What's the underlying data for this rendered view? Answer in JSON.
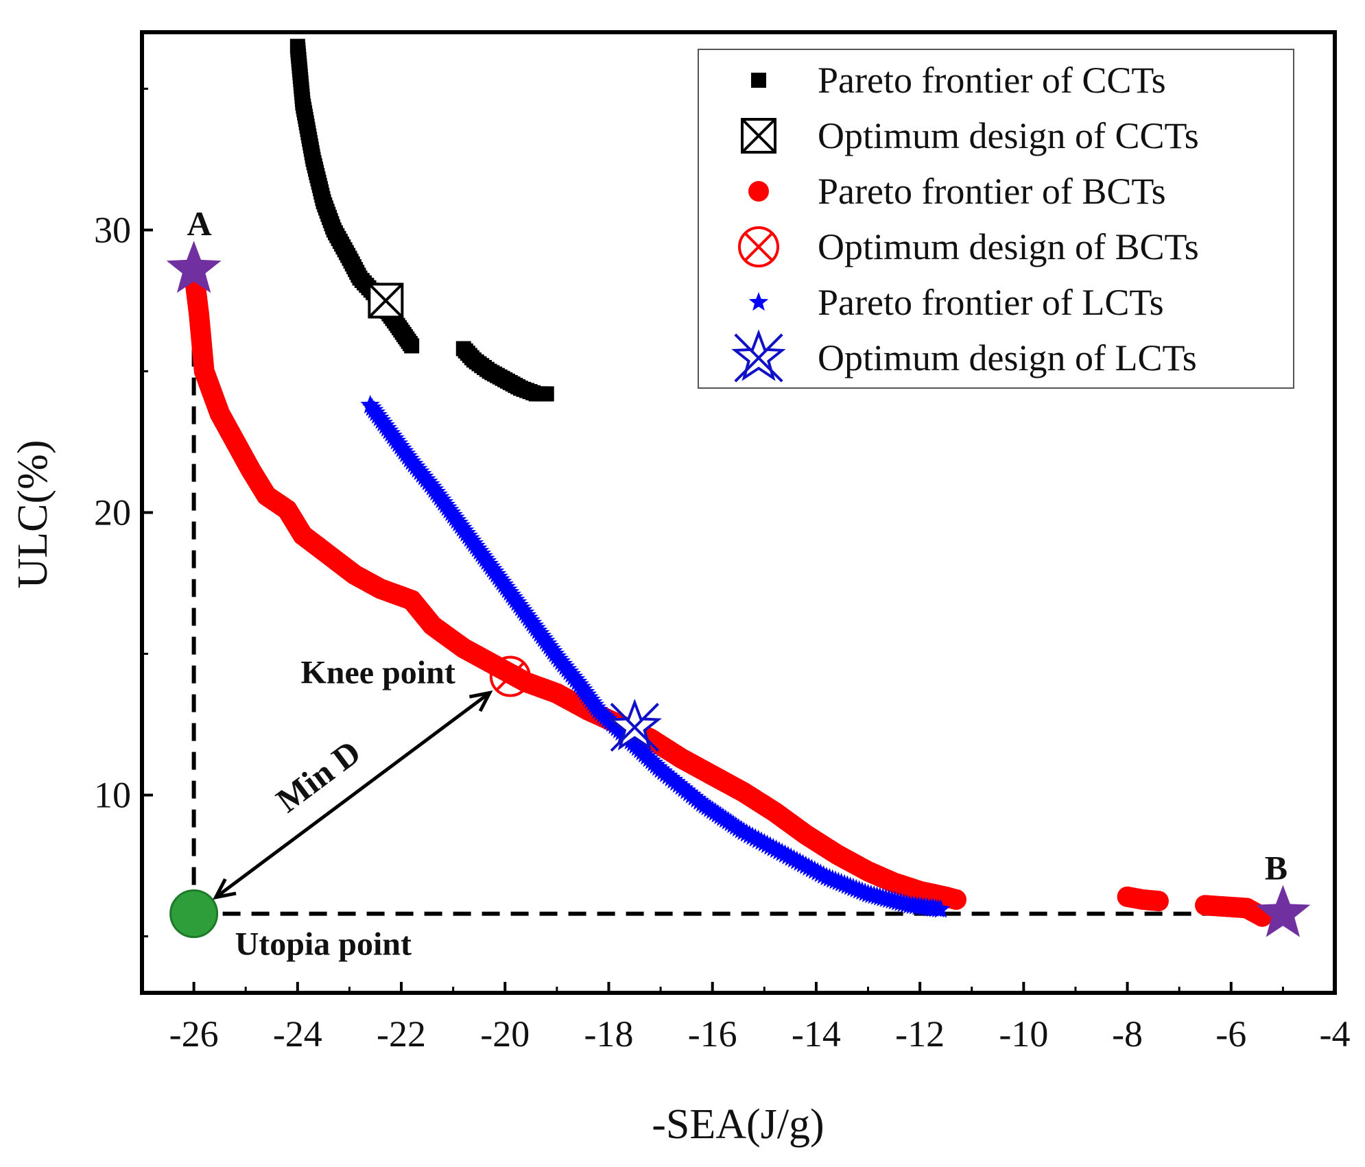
{
  "chart_data": {
    "type": "scatter",
    "xlabel": "-SEA(J/g)",
    "ylabel": "ULC(%)",
    "xlim": [
      -27,
      -4
    ],
    "ylim": [
      3,
      37
    ],
    "x_ticks": [
      -26,
      -24,
      -22,
      -20,
      -18,
      -16,
      -14,
      -12,
      -10,
      -8,
      -6,
      -4
    ],
    "x_tick_labels": [
      "-26",
      "-24",
      "-22",
      "-20",
      "-18",
      "-16",
      "-14",
      "-12",
      "-10",
      "-8",
      "-6",
      "-4"
    ],
    "y_ticks": [
      10,
      20,
      30
    ],
    "y_tick_labels": [
      "10",
      "20",
      "30"
    ],
    "series": [
      {
        "name": "Pareto frontier of CCTs",
        "marker": "square",
        "color": "#000000",
        "points": [
          [
            -24.0,
            36.5
          ],
          [
            -23.9,
            34.5
          ],
          [
            -23.7,
            32.5
          ],
          [
            -23.5,
            31.0
          ],
          [
            -23.3,
            30.0
          ],
          [
            -23.0,
            29.0
          ],
          [
            -22.8,
            28.3
          ],
          [
            -22.5,
            27.7
          ],
          [
            -22.3,
            27.2
          ],
          [
            -22.1,
            26.7
          ],
          [
            -21.95,
            26.3
          ],
          [
            -21.8,
            25.9
          ],
          [
            -20.8,
            25.8
          ],
          [
            -20.6,
            25.4
          ],
          [
            -20.3,
            25.0
          ],
          [
            -20.0,
            24.7
          ],
          [
            -19.7,
            24.4
          ],
          [
            -19.4,
            24.2
          ],
          [
            -19.2,
            24.2
          ]
        ]
      },
      {
        "name": "Pareto frontier of BCTs",
        "marker": "circle",
        "color": "#ff0000",
        "points": [
          [
            -26.0,
            28.5
          ],
          [
            -25.9,
            27.0
          ],
          [
            -25.8,
            25.0
          ],
          [
            -25.5,
            23.5
          ],
          [
            -25.2,
            22.5
          ],
          [
            -24.9,
            21.5
          ],
          [
            -24.6,
            20.6
          ],
          [
            -24.2,
            20.1
          ],
          [
            -23.9,
            19.2
          ],
          [
            -23.4,
            18.5
          ],
          [
            -22.9,
            17.8
          ],
          [
            -22.4,
            17.3
          ],
          [
            -21.8,
            16.9
          ],
          [
            -21.4,
            16.0
          ],
          [
            -20.8,
            15.2
          ],
          [
            -20.2,
            14.6
          ],
          [
            -19.6,
            14.0
          ],
          [
            -19.0,
            13.6
          ],
          [
            -18.4,
            13.0
          ],
          [
            -17.8,
            12.5
          ],
          [
            -17.2,
            12.0
          ],
          [
            -16.6,
            11.3
          ],
          [
            -16.0,
            10.7
          ],
          [
            -15.4,
            10.1
          ],
          [
            -14.8,
            9.4
          ],
          [
            -14.2,
            8.6
          ],
          [
            -13.6,
            7.9
          ],
          [
            -13.0,
            7.3
          ],
          [
            -12.5,
            6.9
          ],
          [
            -12.0,
            6.6
          ],
          [
            -11.5,
            6.4
          ],
          [
            -11.3,
            6.3
          ],
          [
            -8.0,
            6.4
          ],
          [
            -7.7,
            6.3
          ],
          [
            -7.4,
            6.25
          ],
          [
            -6.5,
            6.1
          ],
          [
            -6.1,
            6.05
          ],
          [
            -5.7,
            6.0
          ],
          [
            -5.4,
            5.7
          ]
        ]
      },
      {
        "name": "Pareto frontier of LCTs",
        "marker": "star",
        "color": "#0000ff",
        "points": [
          [
            -22.6,
            23.8
          ],
          [
            -22.2,
            22.8
          ],
          [
            -21.8,
            21.8
          ],
          [
            -21.4,
            20.9
          ],
          [
            -21.0,
            19.9
          ],
          [
            -20.6,
            18.9
          ],
          [
            -20.2,
            17.9
          ],
          [
            -19.8,
            16.9
          ],
          [
            -19.4,
            15.9
          ],
          [
            -19.0,
            14.9
          ],
          [
            -18.6,
            14.0
          ],
          [
            -18.2,
            13.0
          ],
          [
            -17.8,
            12.3
          ],
          [
            -17.4,
            11.6
          ],
          [
            -17.0,
            10.9
          ],
          [
            -16.6,
            10.3
          ],
          [
            -16.2,
            9.7
          ],
          [
            -15.8,
            9.2
          ],
          [
            -15.4,
            8.7
          ],
          [
            -15.0,
            8.3
          ],
          [
            -14.6,
            7.9
          ],
          [
            -14.2,
            7.5
          ],
          [
            -13.8,
            7.1
          ],
          [
            -13.4,
            6.8
          ],
          [
            -13.0,
            6.5
          ],
          [
            -12.6,
            6.3
          ],
          [
            -12.2,
            6.1
          ],
          [
            -11.8,
            6.0
          ],
          [
            -11.6,
            5.95
          ]
        ]
      }
    ],
    "optimum_designs": [
      {
        "name": "Optimum design of CCTs",
        "marker": "square-x",
        "color": "#000000",
        "x": -22.3,
        "y": 27.5
      },
      {
        "name": "Optimum design of BCTs",
        "marker": "circle-x",
        "color": "#ff0000",
        "x": -19.9,
        "y": 14.2
      },
      {
        "name": "Optimum design of LCTs",
        "marker": "star-outline",
        "color": "#1010c8",
        "x": -17.5,
        "y": 12.4
      }
    ],
    "special_points": [
      {
        "label": "A",
        "x": -26.0,
        "y": 28.6,
        "marker": "star",
        "color": "#7030a0"
      },
      {
        "label": "B",
        "x": -5.0,
        "y": 5.8,
        "marker": "star",
        "color": "#7030a0"
      },
      {
        "label": "Utopia point",
        "x": -26.0,
        "y": 5.8,
        "marker": "circle",
        "color": "#2e9e3a"
      }
    ],
    "annotations": {
      "knee_point": "Knee point",
      "min_d": "Min D"
    },
    "reference_lines": [
      {
        "style": "dashed",
        "orientation": "vertical",
        "x": -26.0,
        "from_y": 5.8,
        "to_y": 28.0
      },
      {
        "style": "dashed",
        "orientation": "horizontal",
        "y": 5.8,
        "from_x": -26.0,
        "to_x": -5.0
      }
    ],
    "legend": {
      "position": "top-right",
      "entries": [
        "Pareto frontier of CCTs",
        "Optimum design of CCTs",
        "Pareto frontier of BCTs",
        "Optimum design of BCTs",
        "Pareto frontier of LCTs",
        "Optimum design of LCTs"
      ]
    }
  }
}
